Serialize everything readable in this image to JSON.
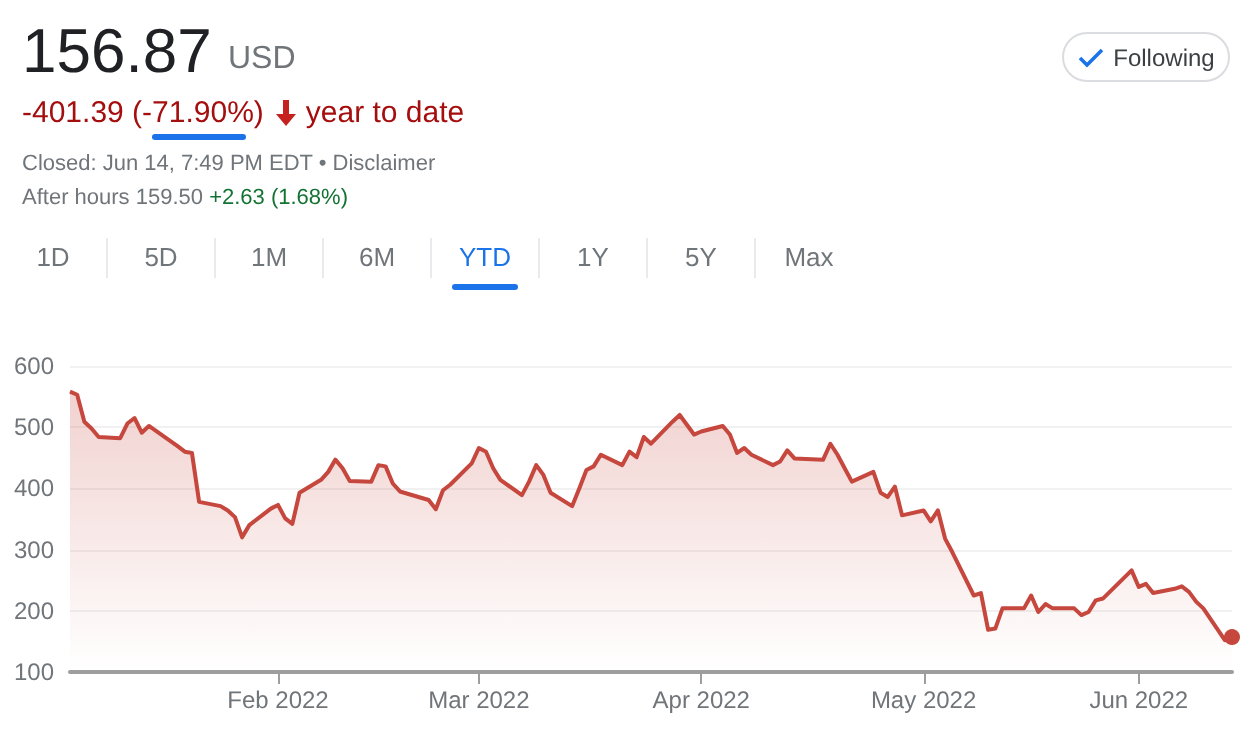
{
  "chart_data": {
    "type": "area",
    "title": "156.87",
    "annotations": [
      "USD",
      "-401.39 (-71.90%)",
      "year to date",
      "Closed: Jun 14, 7:49 PM EDT • Disclaimer",
      "After hours 159.50",
      "+2.63 (1.68%)",
      "Following",
      "1D",
      "5D",
      "1M",
      "6M",
      "YTD",
      "1Y",
      "5Y",
      "Max"
    ],
    "x": [
      "2022-01-03",
      "2022-01-04",
      "2022-01-05",
      "2022-01-06",
      "2022-01-07",
      "2022-01-10",
      "2022-01-11",
      "2022-01-12",
      "2022-01-13",
      "2022-01-14",
      "2022-01-18",
      "2022-01-19",
      "2022-01-20",
      "2022-01-21",
      "2022-01-24",
      "2022-01-25",
      "2022-01-26",
      "2022-01-27",
      "2022-01-28",
      "2022-01-31",
      "2022-02-01",
      "2022-02-02",
      "2022-02-03",
      "2022-02-04",
      "2022-02-07",
      "2022-02-08",
      "2022-02-09",
      "2022-02-10",
      "2022-02-11",
      "2022-02-14",
      "2022-02-15",
      "2022-02-16",
      "2022-02-17",
      "2022-02-18",
      "2022-02-22",
      "2022-02-23",
      "2022-02-24",
      "2022-02-25",
      "2022-02-28",
      "2022-03-01",
      "2022-03-02",
      "2022-03-03",
      "2022-03-04",
      "2022-03-07",
      "2022-03-08",
      "2022-03-09",
      "2022-03-10",
      "2022-03-11",
      "2022-03-14",
      "2022-03-15",
      "2022-03-16",
      "2022-03-17",
      "2022-03-18",
      "2022-03-21",
      "2022-03-22",
      "2022-03-23",
      "2022-03-24",
      "2022-03-25",
      "2022-03-28",
      "2022-03-29",
      "2022-03-30",
      "2022-03-31",
      "2022-04-01",
      "2022-04-04",
      "2022-04-05",
      "2022-04-06",
      "2022-04-07",
      "2022-04-08",
      "2022-04-11",
      "2022-04-12",
      "2022-04-13",
      "2022-04-14",
      "2022-04-18",
      "2022-04-19",
      "2022-04-20",
      "2022-04-21",
      "2022-04-22",
      "2022-04-25",
      "2022-04-26",
      "2022-04-27",
      "2022-04-28",
      "2022-04-29",
      "2022-05-02",
      "2022-05-03",
      "2022-05-04",
      "2022-05-05",
      "2022-05-06",
      "2022-05-09",
      "2022-05-10",
      "2022-05-11",
      "2022-05-12",
      "2022-05-13",
      "2022-05-16",
      "2022-05-17",
      "2022-05-18",
      "2022-05-19",
      "2022-05-20",
      "2022-05-23",
      "2022-05-24",
      "2022-05-25",
      "2022-05-26",
      "2022-05-27",
      "2022-05-31",
      "2022-06-01",
      "2022-06-02",
      "2022-06-03",
      "2022-06-06",
      "2022-06-07",
      "2022-06-08",
      "2022-06-09",
      "2022-06-10",
      "2022-06-13",
      "2022-06-14"
    ],
    "series": [
      {
        "color": "#c5473d",
        "values": [
          558,
          553,
          509,
          498,
          484,
          482,
          506,
          515,
          491,
          502,
          469,
          460,
          458,
          378,
          371,
          364,
          353,
          320,
          340,
          367,
          373,
          351,
          342,
          393,
          414,
          427,
          447,
          433,
          412,
          411,
          438,
          436,
          408,
          395,
          381,
          366,
          397,
          406,
          441,
          466,
          460,
          433,
          414,
          389,
          411,
          438,
          422,
          393,
          371,
          400,
          430,
          436,
          455,
          438,
          460,
          451,
          484,
          473,
          509,
          520,
          504,
          488,
          493,
          502,
          488,
          458,
          466,
          455,
          438,
          444,
          462,
          449,
          447,
          473,
          455,
          433,
          411,
          427,
          393,
          386,
          403,
          356,
          364,
          346,
          364,
          318,
          296,
          225,
          229,
          169,
          171,
          204,
          204,
          225,
          198,
          211,
          204,
          204,
          193,
          198,
          217,
          220,
          266,
          239,
          244,
          229,
          236,
          240,
          231,
          215,
          204,
          152,
          157
        ]
      }
    ],
    "xlim": [
      "2022-01-03",
      "2022-06-14"
    ],
    "xticks": [
      {
        "value": "2022-02-01",
        "label": "Feb 2022"
      },
      {
        "value": "2022-03-01",
        "label": "Mar 2022"
      },
      {
        "value": "2022-04-01",
        "label": "Apr 2022"
      },
      {
        "value": "2022-05-02",
        "label": "May 2022"
      },
      {
        "value": "2022-06-01",
        "label": "Jun 2022"
      }
    ],
    "ylim": [
      100,
      600
    ],
    "yticks": [
      100,
      200,
      300,
      400,
      500,
      600
    ],
    "grid": "y"
  }
}
